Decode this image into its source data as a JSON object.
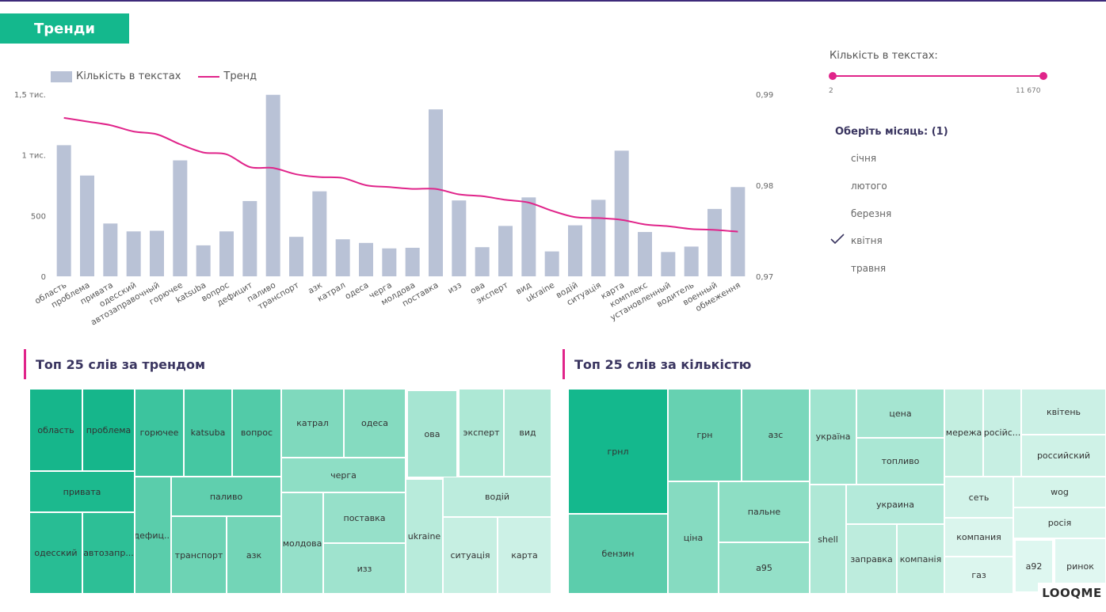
{
  "page": {
    "title": "Тренди"
  },
  "legend": {
    "bar_label": "Кількість в текстах",
    "line_label": "Тренд"
  },
  "chart_data": {
    "type": "bar",
    "categories": [
      "область",
      "проблема",
      "привата",
      "одесский",
      "автозаправочный",
      "горючее",
      "katsuba",
      "вопрос",
      "дефицит",
      "паливо",
      "транспорт",
      "азк",
      "катрал",
      "одеса",
      "черга",
      "молдова",
      "поставка",
      "изз",
      "ова",
      "эксперт",
      "вид",
      "ukraine",
      "водій",
      "ситуація",
      "карта",
      "комплекс",
      "установленный",
      "водитель",
      "военный",
      "обмеження"
    ],
    "series": [
      {
        "name": "Кількість в текстах",
        "axis": "left",
        "values": [
          1080,
          830,
          435,
          370,
          375,
          955,
          255,
          370,
          620,
          1495,
          325,
          700,
          305,
          275,
          230,
          235,
          1375,
          625,
          240,
          415,
          650,
          205,
          420,
          630,
          1035,
          365,
          200,
          245,
          555,
          735
        ]
      },
      {
        "name": "Тренд",
        "axis": "right",
        "values": [
          0.9874,
          0.987,
          0.9866,
          0.9859,
          0.9856,
          0.9845,
          0.9836,
          0.9834,
          0.982,
          0.9819,
          0.9812,
          0.9809,
          0.9808,
          0.98,
          0.9798,
          0.9796,
          0.9796,
          0.979,
          0.9788,
          0.9784,
          0.9781,
          0.9772,
          0.9765,
          0.9764,
          0.9762,
          0.9757,
          0.9755,
          0.9752,
          0.9751,
          0.9749
        ]
      }
    ],
    "y_left": {
      "ticks": [
        "0",
        "500",
        "1 тис.",
        "1,5 тис."
      ],
      "range": [
        0,
        1500
      ]
    },
    "y_right": {
      "ticks": [
        "0,97",
        "0,98",
        "0,99"
      ],
      "range": [
        0.97,
        0.99
      ]
    },
    "colors": {
      "bar": "#b9c2d6",
      "line": "#e0248a"
    }
  },
  "filter": {
    "slider_label": "Кількість в текстах:",
    "slider_min": "2",
    "slider_max": "11 670",
    "slider_value": {
      "from": 2,
      "to": 11670
    },
    "month_title": "Оберіть місяць: (1)",
    "months": [
      "січня",
      "лютого",
      "березня",
      "квітня",
      "травня"
    ],
    "selected_month": "квітня"
  },
  "treemap_trend": {
    "title": "Топ 25 слів за трендом",
    "items": [
      "область",
      "проблема",
      "привата",
      "одесский",
      "автозапр...",
      "горючее",
      "katsuba",
      "вопрос",
      "паливо",
      "дефиц...",
      "транспорт",
      "азк",
      "катрал",
      "одеса",
      "черга",
      "молдова",
      "поставка",
      "изз",
      "ова",
      "эксперт",
      "вид",
      "водій",
      "ukraine",
      "ситуація",
      "карта"
    ]
  },
  "treemap_count": {
    "title": "Топ 25 слів за кількістю",
    "items": [
      "грнл",
      "бензин",
      "грн",
      "азс",
      "ціна",
      "пальне",
      "а95",
      "україна",
      "цена",
      "топливо",
      "shell",
      "украина",
      "заправка",
      "компанія",
      "мережа",
      "російс...",
      "квітень",
      "российский",
      "сеть",
      "wog",
      "росія",
      "компания",
      "газ",
      "а92",
      "ринок"
    ]
  },
  "logo": {
    "text": "LOOQME"
  }
}
